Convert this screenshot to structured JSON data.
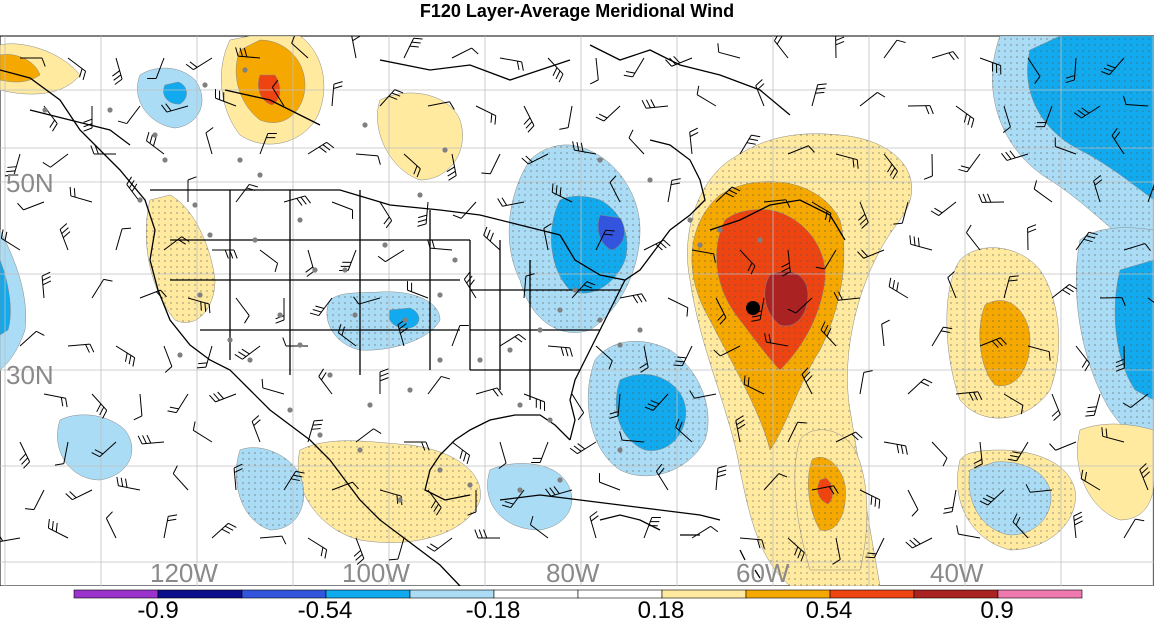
{
  "title": "F120 Layer-Average Meridional Wind",
  "latitude_labels": [
    "50N",
    "30N"
  ],
  "longitude_labels": [
    "120W",
    "100W",
    "80W",
    "60W",
    "40W"
  ],
  "colorbar": {
    "tick_labels": [
      "-0.9",
      "-0.54",
      "-0.18",
      "0.18",
      "0.54",
      "0.9"
    ],
    "colors": [
      "#9933cc",
      "#0c0f8c",
      "#3355dd",
      "#11aaee",
      "#aaddf5",
      "#ffffff",
      "#ffffff",
      "#ffeaa0",
      "#f5a800",
      "#ee4411",
      "#aa2222",
      "#f07ab0"
    ]
  },
  "map_colors": {
    "ocean": "#ffffff",
    "coastline": "#000000",
    "grid": "#bfbfbf",
    "station_dot": "#808080",
    "marker": "#000000"
  }
}
